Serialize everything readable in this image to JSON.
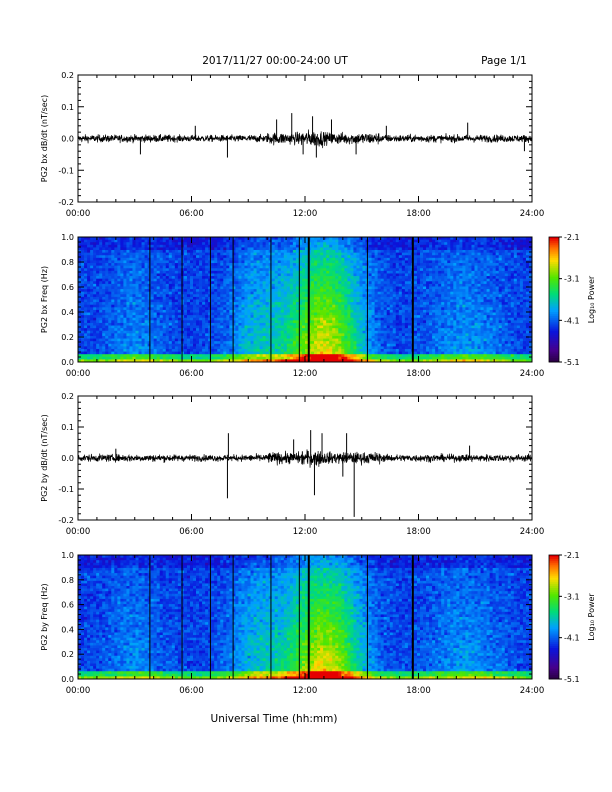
{
  "header": {
    "date_range": "2017/11/27  00:00-24:00 UT",
    "page": "Page 1/1"
  },
  "xlabel": "Universal Time (hh:mm)",
  "chart_data": [
    {
      "type": "line",
      "name": "bx-waveform",
      "ylabel": "PG2 bx dB/dt (nT/sec)",
      "xlim": [
        0,
        24
      ],
      "ylim": [
        -0.2,
        0.2
      ],
      "x_ticks": [
        "00:00",
        "06:00",
        "12:00",
        "18:00",
        "24:00"
      ],
      "y_ticks": [
        "0.2",
        "0.1",
        "0.0",
        "-0.1",
        "-0.2"
      ],
      "baseline_amplitude": 0.02,
      "spikes": [
        {
          "t": 3.3,
          "v": -0.05
        },
        {
          "t": 6.2,
          "v": 0.04
        },
        {
          "t": 7.9,
          "v": -0.06
        },
        {
          "t": 10.5,
          "v": 0.06
        },
        {
          "t": 11.3,
          "v": 0.08
        },
        {
          "t": 11.9,
          "v": -0.05
        },
        {
          "t": 12.4,
          "v": 0.07
        },
        {
          "t": 12.6,
          "v": -0.06
        },
        {
          "t": 13.4,
          "v": 0.06
        },
        {
          "t": 14.7,
          "v": -0.05
        },
        {
          "t": 16.3,
          "v": 0.04
        },
        {
          "t": 20.6,
          "v": 0.05
        },
        {
          "t": 23.6,
          "v": -0.04
        }
      ]
    },
    {
      "type": "heatmap",
      "name": "bx-spectrogram",
      "ylabel": "PG2 bx Freq (Hz)",
      "xlim": [
        0,
        24
      ],
      "ylim": [
        0.0,
        1.0
      ],
      "x_ticks": [
        "00:00",
        "06:00",
        "12:00",
        "18:00",
        "24:00"
      ],
      "y_ticks": [
        "1.0",
        "0.8",
        "0.6",
        "0.4",
        "0.2",
        "0.0"
      ],
      "colorbar": {
        "label": "Log₁₀ Power",
        "ticks": [
          "-2.1",
          "-3.1",
          "-4.1",
          "-5.1"
        ]
      },
      "gaps": [
        3.8,
        5.5,
        7.0,
        8.2,
        10.2,
        11.7,
        12.2,
        15.3,
        17.7
      ]
    },
    {
      "type": "line",
      "name": "by-waveform",
      "ylabel": "PG2 by dB/dt (nT/sec)",
      "xlim": [
        0,
        24
      ],
      "ylim": [
        -0.2,
        0.2
      ],
      "x_ticks": [
        "00:00",
        "06:00",
        "12:00",
        "18:00",
        "24:00"
      ],
      "y_ticks": [
        "0.2",
        "0.1",
        "0.0",
        "-0.1",
        "-0.2"
      ],
      "baseline_amplitude": 0.02,
      "spikes": [
        {
          "t": 2.0,
          "v": 0.03
        },
        {
          "t": 7.9,
          "v": -0.13
        },
        {
          "t": 7.95,
          "v": 0.08
        },
        {
          "t": 11.4,
          "v": 0.06
        },
        {
          "t": 12.3,
          "v": 0.09
        },
        {
          "t": 12.5,
          "v": -0.12
        },
        {
          "t": 12.9,
          "v": 0.08
        },
        {
          "t": 14.0,
          "v": -0.06
        },
        {
          "t": 14.2,
          "v": 0.08
        },
        {
          "t": 14.6,
          "v": -0.19
        },
        {
          "t": 20.7,
          "v": 0.04
        }
      ]
    },
    {
      "type": "heatmap",
      "name": "by-spectrogram",
      "ylabel": "PG2 by Freq (Hz)",
      "xlim": [
        0,
        24
      ],
      "ylim": [
        0.0,
        1.0
      ],
      "x_ticks": [
        "00:00",
        "06:00",
        "12:00",
        "18:00",
        "24:00"
      ],
      "y_ticks": [
        "1.0",
        "0.8",
        "0.6",
        "0.4",
        "0.2",
        "0.0"
      ],
      "colorbar": {
        "label": "Log₁₀ Power",
        "ticks": [
          "-2.1",
          "-3.1",
          "-4.1",
          "-5.1"
        ]
      },
      "gaps": [
        3.8,
        5.5,
        7.0,
        8.2,
        10.2,
        11.7,
        12.2,
        15.3,
        17.7
      ]
    }
  ]
}
